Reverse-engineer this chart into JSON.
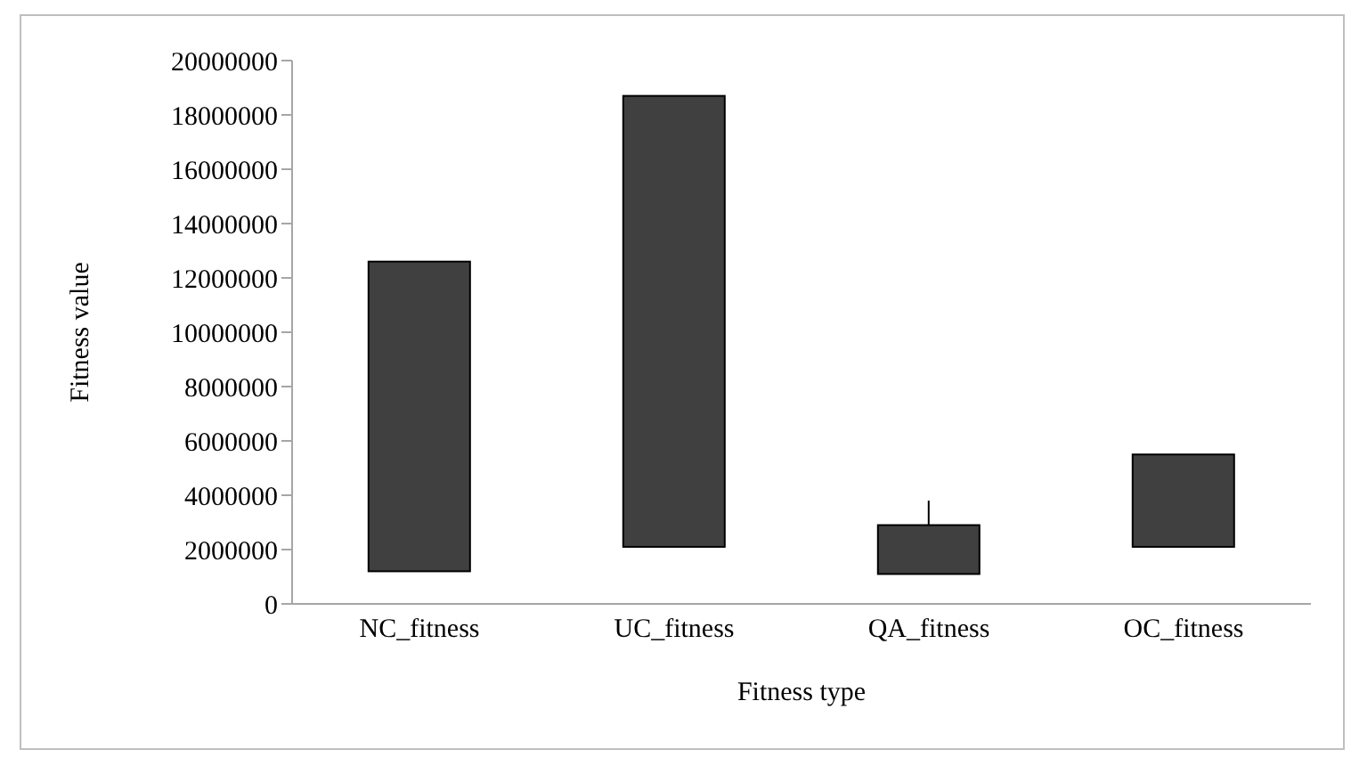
{
  "chart_data": {
    "type": "candlestick",
    "xlabel": "Fitness type",
    "ylabel": "Fitness value",
    "categories": [
      "NC_fitness",
      "UC_fitness",
      "QA_fitness",
      "OC_fitness"
    ],
    "ohlc": [
      [
        1200000,
        12600000,
        1200000,
        12600000
      ],
      [
        2100000,
        18700000,
        2100000,
        18700000
      ],
      [
        1100000,
        3800000,
        1100000,
        2900000
      ],
      [
        2100000,
        5500000,
        2100000,
        5500000
      ]
    ],
    "color": "#404040",
    "ylim": [
      0,
      20000000
    ],
    "yticks": [
      0,
      2000000,
      4000000,
      6000000,
      8000000,
      10000000,
      12000000,
      14000000,
      16000000,
      18000000,
      20000000
    ],
    "grid": false,
    "legend": false
  }
}
